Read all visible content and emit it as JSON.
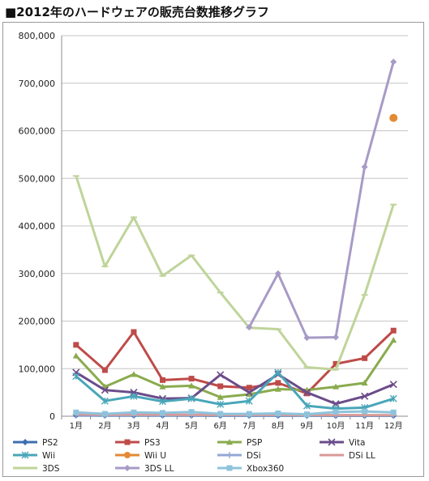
{
  "title": "■2012年のハードウェアの販売台数推移グラフ",
  "chart_data": {
    "type": "line",
    "title": "",
    "xlabel": "",
    "ylabel": "",
    "categories": [
      "1月",
      "2月",
      "3月",
      "4月",
      "5月",
      "6月",
      "7月",
      "8月",
      "9月",
      "10月",
      "11月",
      "12月"
    ],
    "y_ticks": [
      "0",
      "100,000",
      "200,000",
      "300,000",
      "400,000",
      "500,000",
      "600,000",
      "700,000",
      "800,000"
    ],
    "ylim": [
      0,
      800000
    ],
    "grid": true,
    "legend_position": "bottom",
    "series": [
      {
        "name": "PS2",
        "color": "#3d6fb0",
        "marker": "diamond",
        "values": [
          2000,
          1500,
          1500,
          1500,
          1500,
          1000,
          1000,
          1000,
          1000,
          800,
          800,
          800
        ]
      },
      {
        "name": "PS3",
        "color": "#be4b48",
        "marker": "square",
        "values": [
          150000,
          97000,
          177000,
          76000,
          79000,
          63000,
          60000,
          70000,
          48000,
          110000,
          122000,
          180000
        ]
      },
      {
        "name": "PSP",
        "color": "#8aab4e",
        "marker": "triangle",
        "values": [
          127000,
          62000,
          88000,
          62000,
          64000,
          40000,
          46000,
          57000,
          55000,
          62000,
          70000,
          160000
        ]
      },
      {
        "name": "Vita",
        "color": "#6b4c8a",
        "marker": "x",
        "values": [
          92000,
          55000,
          50000,
          37000,
          38000,
          87000,
          50000,
          88000,
          50000,
          26000,
          42000,
          67000
        ]
      },
      {
        "name": "Wii",
        "color": "#49a6b9",
        "marker": "asterisk",
        "values": [
          84000,
          32000,
          42000,
          31000,
          37000,
          25000,
          32000,
          92000,
          22000,
          16000,
          18000,
          37000
        ]
      },
      {
        "name": "Wii U",
        "color": "#e38a35",
        "marker": "circle",
        "values": [
          null,
          null,
          null,
          null,
          null,
          null,
          null,
          null,
          null,
          null,
          null,
          627000
        ]
      },
      {
        "name": "DSi",
        "color": "#93a8d3",
        "marker": "plus",
        "values": [
          3000,
          2500,
          2500,
          2500,
          2500,
          2000,
          2000,
          2000,
          1800,
          1500,
          1500,
          1500
        ]
      },
      {
        "name": "DSi LL",
        "color": "#d89a97",
        "marker": "dash",
        "values": [
          4000,
          3500,
          3500,
          3500,
          3000,
          2800,
          2800,
          2700,
          2500,
          2400,
          2300,
          2200
        ]
      },
      {
        "name": "3DS",
        "color": "#bfd49a",
        "marker": "dash",
        "values": [
          505000,
          315000,
          418000,
          295000,
          338000,
          260000,
          186000,
          183000,
          103000,
          98000,
          255000,
          445000
        ]
      },
      {
        "name": "3DS LL",
        "color": "#a79bc6",
        "marker": "diamond",
        "values": [
          null,
          null,
          null,
          null,
          null,
          null,
          187000,
          300000,
          165000,
          166000,
          524000,
          745000
        ]
      },
      {
        "name": "Xbox360",
        "color": "#8fc3dc",
        "marker": "square",
        "values": [
          8000,
          5000,
          8000,
          7000,
          9000,
          5000,
          5000,
          6000,
          4000,
          9000,
          10000,
          8000
        ]
      }
    ]
  }
}
